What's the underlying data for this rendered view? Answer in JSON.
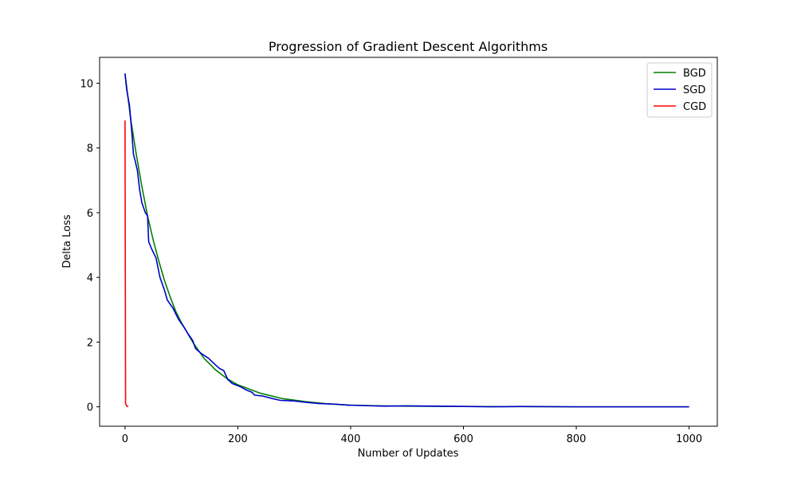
{
  "chart_data": {
    "type": "line",
    "title": "Progression of Gradient Descent Algorithms",
    "xlabel": "Number of Updates",
    "ylabel": "Delta Loss",
    "xlim": [
      -45,
      1050
    ],
    "ylim": [
      -0.6,
      10.8
    ],
    "xticks": [
      0,
      200,
      400,
      600,
      800,
      1000
    ],
    "yticks": [
      0,
      2,
      4,
      6,
      8,
      10
    ],
    "grid": false,
    "legend": "top-right",
    "series": [
      {
        "name": "BGD",
        "color": "#008000",
        "points": [
          [
            0,
            10.3
          ],
          [
            10,
            8.9
          ],
          [
            20,
            7.8
          ],
          [
            30,
            6.8
          ],
          [
            40,
            5.9
          ],
          [
            50,
            5.15
          ],
          [
            60,
            4.5
          ],
          [
            70,
            3.9
          ],
          [
            80,
            3.4
          ],
          [
            90,
            2.95
          ],
          [
            100,
            2.6
          ],
          [
            120,
            2.0
          ],
          [
            140,
            1.5
          ],
          [
            160,
            1.15
          ],
          [
            180,
            0.88
          ],
          [
            200,
            0.68
          ],
          [
            240,
            0.42
          ],
          [
            280,
            0.25
          ],
          [
            320,
            0.16
          ],
          [
            360,
            0.09
          ],
          [
            400,
            0.05
          ],
          [
            450,
            0.03
          ],
          [
            500,
            0.02
          ],
          [
            600,
            0.01
          ],
          [
            800,
            0.0
          ],
          [
            1000,
            0.0
          ]
        ]
      },
      {
        "name": "SGD",
        "color": "#0000cc",
        "points": [
          [
            0,
            10.3
          ],
          [
            3,
            9.8
          ],
          [
            8,
            9.3
          ],
          [
            12,
            8.5
          ],
          [
            15,
            7.8
          ],
          [
            18,
            7.6
          ],
          [
            22,
            7.3
          ],
          [
            26,
            6.7
          ],
          [
            30,
            6.3
          ],
          [
            36,
            6.0
          ],
          [
            40,
            5.9
          ],
          [
            42,
            5.1
          ],
          [
            48,
            4.85
          ],
          [
            55,
            4.6
          ],
          [
            62,
            4.0
          ],
          [
            70,
            3.6
          ],
          [
            75,
            3.3
          ],
          [
            85,
            3.05
          ],
          [
            95,
            2.7
          ],
          [
            105,
            2.45
          ],
          [
            112,
            2.25
          ],
          [
            120,
            2.05
          ],
          [
            125,
            1.8
          ],
          [
            135,
            1.65
          ],
          [
            148,
            1.5
          ],
          [
            160,
            1.3
          ],
          [
            168,
            1.18
          ],
          [
            175,
            1.12
          ],
          [
            182,
            0.85
          ],
          [
            190,
            0.72
          ],
          [
            205,
            0.62
          ],
          [
            215,
            0.52
          ],
          [
            225,
            0.45
          ],
          [
            230,
            0.36
          ],
          [
            245,
            0.33
          ],
          [
            260,
            0.26
          ],
          [
            275,
            0.2
          ],
          [
            300,
            0.18
          ],
          [
            320,
            0.14
          ],
          [
            345,
            0.1
          ],
          [
            375,
            0.08
          ],
          [
            395,
            0.05
          ],
          [
            420,
            0.04
          ],
          [
            460,
            0.02
          ],
          [
            500,
            0.03
          ],
          [
            550,
            0.02
          ],
          [
            600,
            0.01
          ],
          [
            650,
            0.0
          ],
          [
            700,
            0.01
          ],
          [
            800,
            0.0
          ],
          [
            900,
            0.0
          ],
          [
            1000,
            0.0
          ]
        ]
      },
      {
        "name": "CGD",
        "color": "#ff0000",
        "points": [
          [
            0,
            8.85
          ],
          [
            1,
            0.1
          ],
          [
            3,
            0.02
          ],
          [
            6,
            0.01
          ]
        ]
      }
    ]
  }
}
